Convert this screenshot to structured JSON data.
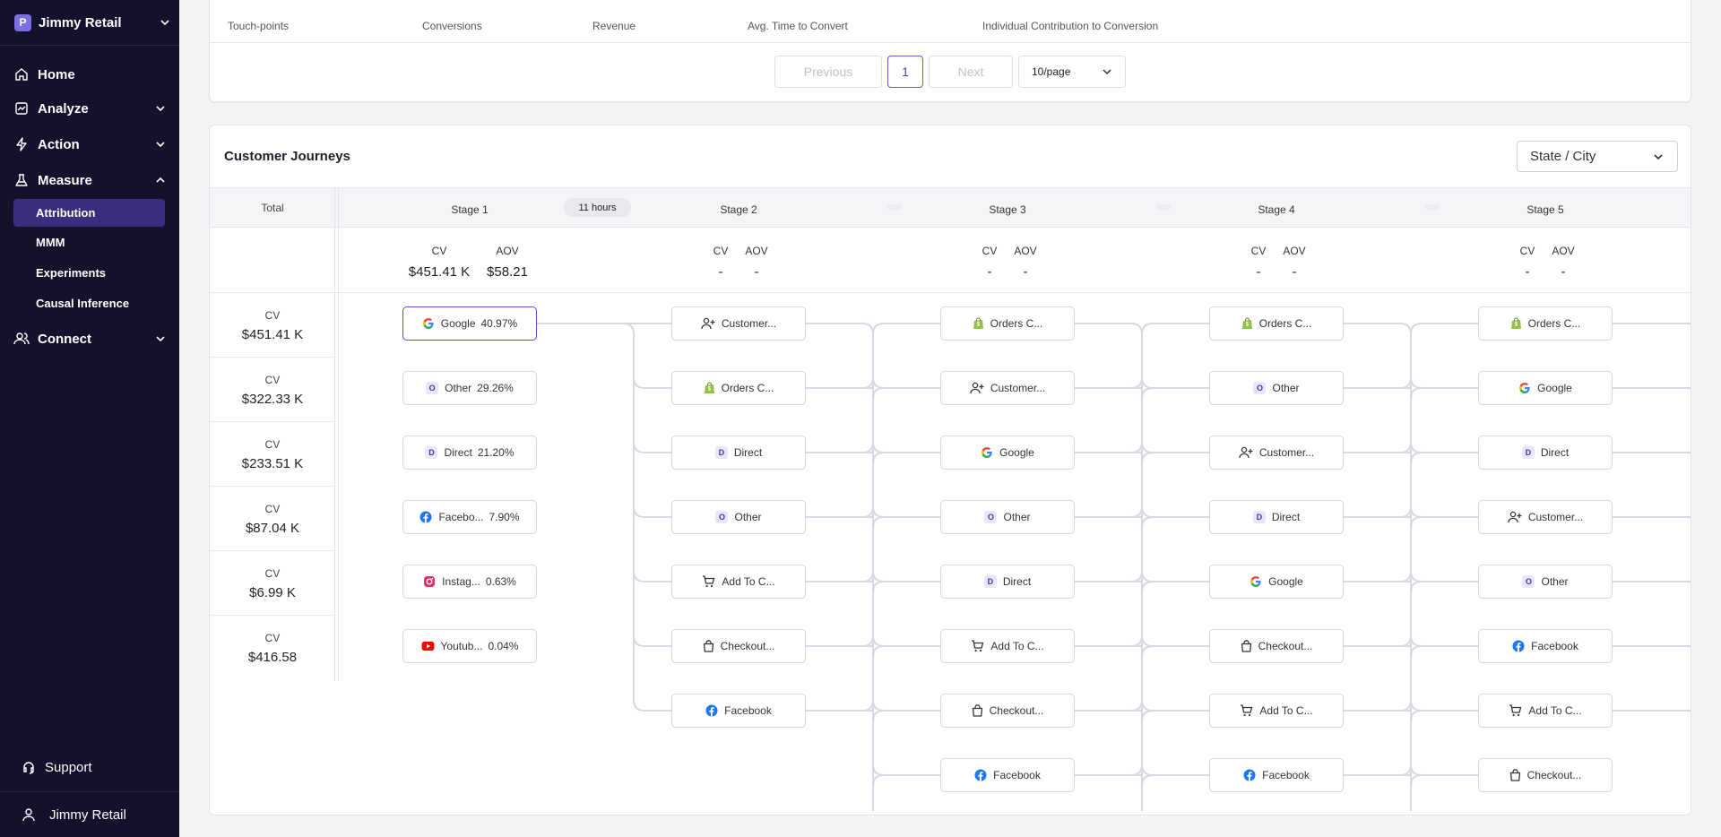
{
  "sidebar": {
    "workspace": {
      "logo_letter": "P",
      "name": "Jimmy Retail"
    },
    "nav": [
      {
        "label": "Home",
        "icon": "home-icon"
      },
      {
        "label": "Analyze",
        "icon": "chart-icon"
      },
      {
        "label": "Action",
        "icon": "bolt-icon"
      },
      {
        "label": "Measure",
        "icon": "flask-icon"
      }
    ],
    "measure_sub": [
      "Attribution",
      "MMM",
      "Experiments",
      "Causal Inference"
    ],
    "connect": {
      "label": "Connect",
      "icon": "users-icon"
    },
    "support": {
      "label": "Support",
      "icon": "headset-icon"
    },
    "user": {
      "label": "Jimmy Retail",
      "icon": "user-icon"
    }
  },
  "table": {
    "headers": [
      "Touch-points",
      "Conversions",
      "Revenue",
      "Avg. Time to Convert",
      "Individual Contribution to Conversion"
    ],
    "pagination": {
      "previous": "Previous",
      "current_page": "1",
      "next": "Next",
      "page_size": "10/page"
    }
  },
  "journeys": {
    "title": "Customer Journeys",
    "dropdown": "State / City",
    "total_label": "Total",
    "time_badge": "11 hours",
    "totals": [
      {
        "label": "CV",
        "value": "$451.41 K"
      },
      {
        "label": "CV",
        "value": "$322.33 K"
      },
      {
        "label": "CV",
        "value": "$233.51 K"
      },
      {
        "label": "CV",
        "value": "$87.04 K"
      },
      {
        "label": "CV",
        "value": "$6.99 K"
      },
      {
        "label": "CV",
        "value": "$416.58"
      }
    ],
    "stages": [
      {
        "name": "Stage 1",
        "cv_label": "CV",
        "aov_label": "AOV",
        "cv": "$451.41 K",
        "aov": "$58.21",
        "nodes": [
          {
            "icon": "google-icon",
            "label": "Google",
            "pct": "40.97%",
            "selected": true
          },
          {
            "icon": "letter-o-icon",
            "label": "Other",
            "pct": "29.26%"
          },
          {
            "icon": "letter-d-icon",
            "label": "Direct",
            "pct": "21.20%"
          },
          {
            "icon": "facebook-icon",
            "label": "Facebo...",
            "pct": "7.90%"
          },
          {
            "icon": "instagram-icon",
            "label": "Instag...",
            "pct": "0.63%"
          },
          {
            "icon": "youtube-icon",
            "label": "Youtub...",
            "pct": "0.04%"
          }
        ]
      },
      {
        "name": "Stage 2",
        "cv_label": "CV",
        "aov_label": "AOV",
        "cv": "-",
        "aov": "-",
        "nodes": [
          {
            "icon": "user-plus-icon",
            "label": "Customer..."
          },
          {
            "icon": "shopify-icon",
            "label": "Orders C..."
          },
          {
            "icon": "letter-d-icon",
            "label": "Direct"
          },
          {
            "icon": "letter-o-icon",
            "label": "Other"
          },
          {
            "icon": "cart-icon",
            "label": "Add To C..."
          },
          {
            "icon": "bag-icon",
            "label": "Checkout..."
          },
          {
            "icon": "facebook-icon",
            "label": "Facebook"
          }
        ]
      },
      {
        "name": "Stage 3",
        "cv_label": "CV",
        "aov_label": "AOV",
        "cv": "-",
        "aov": "-",
        "nodes": [
          {
            "icon": "shopify-icon",
            "label": "Orders C..."
          },
          {
            "icon": "user-plus-icon",
            "label": "Customer..."
          },
          {
            "icon": "google-icon",
            "label": "Google"
          },
          {
            "icon": "letter-o-icon",
            "label": "Other"
          },
          {
            "icon": "letter-d-icon",
            "label": "Direct"
          },
          {
            "icon": "cart-icon",
            "label": "Add To C..."
          },
          {
            "icon": "bag-icon",
            "label": "Checkout..."
          },
          {
            "icon": "facebook-icon",
            "label": "Facebook"
          }
        ]
      },
      {
        "name": "Stage 4",
        "cv_label": "CV",
        "aov_label": "AOV",
        "cv": "-",
        "aov": "-",
        "nodes": [
          {
            "icon": "shopify-icon",
            "label": "Orders C..."
          },
          {
            "icon": "letter-o-icon",
            "label": "Other"
          },
          {
            "icon": "user-plus-icon",
            "label": "Customer..."
          },
          {
            "icon": "letter-d-icon",
            "label": "Direct"
          },
          {
            "icon": "google-icon",
            "label": "Google"
          },
          {
            "icon": "bag-icon",
            "label": "Checkout..."
          },
          {
            "icon": "cart-icon",
            "label": "Add To C..."
          },
          {
            "icon": "facebook-icon",
            "label": "Facebook"
          }
        ]
      },
      {
        "name": "Stage 5",
        "cv_label": "CV",
        "aov_label": "AOV",
        "cv": "-",
        "aov": "-",
        "nodes": [
          {
            "icon": "shopify-icon",
            "label": "Orders C..."
          },
          {
            "icon": "google-icon",
            "label": "Google"
          },
          {
            "icon": "letter-d-icon",
            "label": "Direct"
          },
          {
            "icon": "user-plus-icon",
            "label": "Customer..."
          },
          {
            "icon": "letter-o-icon",
            "label": "Other"
          },
          {
            "icon": "facebook-icon",
            "label": "Facebook"
          },
          {
            "icon": "cart-icon",
            "label": "Add To C..."
          },
          {
            "icon": "bag-icon",
            "label": "Checkout..."
          }
        ]
      }
    ]
  },
  "colors": {
    "sidebar_bg": "#13112b",
    "active_bg": "#3a2d7d",
    "accent": "#5a4bd1",
    "flow_line": "#d8d8e4"
  }
}
